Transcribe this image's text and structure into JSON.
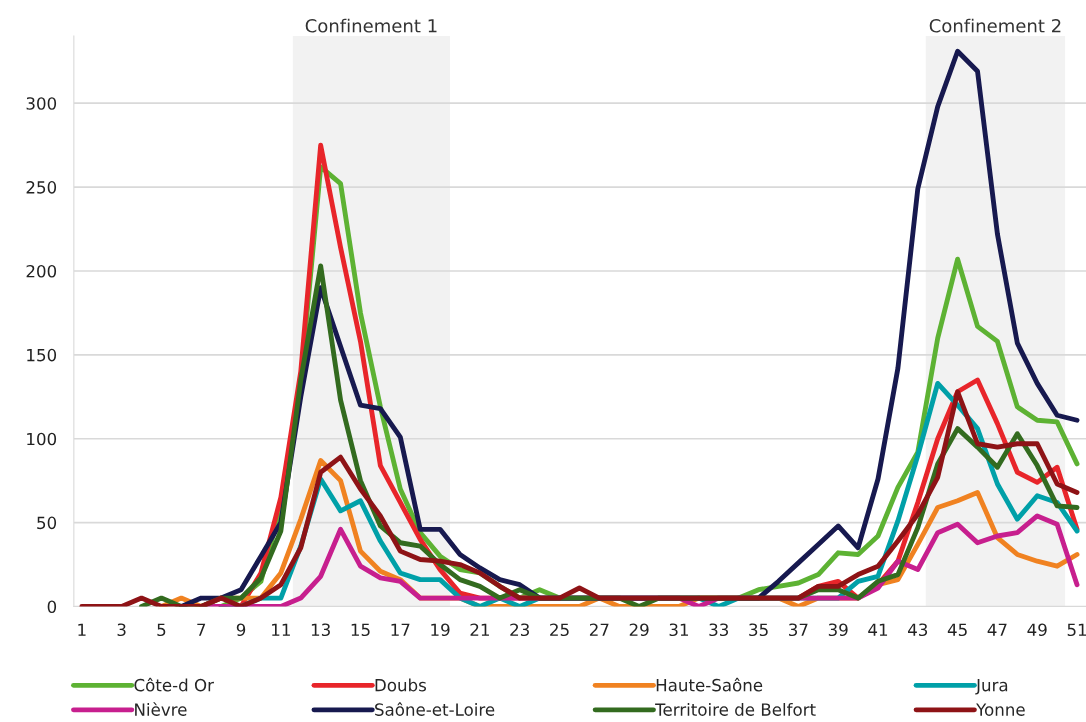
{
  "chart_data": {
    "type": "line",
    "x": [
      1,
      2,
      3,
      4,
      5,
      6,
      7,
      8,
      9,
      10,
      11,
      12,
      13,
      14,
      15,
      16,
      17,
      18,
      19,
      20,
      21,
      22,
      23,
      24,
      25,
      26,
      27,
      28,
      29,
      30,
      31,
      32,
      33,
      34,
      35,
      36,
      37,
      38,
      39,
      40,
      41,
      42,
      43,
      44,
      45,
      46,
      47,
      48,
      49,
      50,
      51
    ],
    "xlim": [
      0.6,
      51.45
    ],
    "xticks": [
      1,
      3,
      5,
      7,
      9,
      11,
      13,
      15,
      17,
      19,
      21,
      23,
      25,
      27,
      29,
      31,
      33,
      35,
      37,
      39,
      41,
      43,
      45,
      47,
      49,
      51
    ],
    "ylim": [
      0,
      340
    ],
    "yticks": [
      0,
      50,
      100,
      150,
      200,
      250,
      300
    ],
    "grid": "y",
    "legend": "bottom",
    "marker": "none",
    "line_style": "solid",
    "bands": [
      {
        "axis": "x",
        "from": 11.6,
        "to": 19.5,
        "label": "Confinement 1",
        "color": "#f2f2f2"
      },
      {
        "axis": "x",
        "from": 43.4,
        "to": 50.4,
        "label": "Confinement 2",
        "color": "#f2f2f2"
      }
    ],
    "series": [
      {
        "name": "Côte-d Or",
        "color": "#5db233",
        "values": [
          null,
          null,
          null,
          null,
          null,
          null,
          null,
          0,
          5,
          15,
          60,
          135,
          262,
          252,
          175,
          119,
          70,
          44,
          30,
          22,
          20,
          12,
          5,
          10,
          5,
          5,
          5,
          5,
          5,
          5,
          5,
          5,
          5,
          5,
          10,
          12,
          14,
          19,
          32,
          31,
          42,
          71,
          92,
          160,
          207,
          167,
          158,
          119,
          111,
          110,
          85
        ]
      },
      {
        "name": "Doubs",
        "color": "#e8252a",
        "values": [
          null,
          null,
          null,
          null,
          null,
          null,
          null,
          0,
          0,
          20,
          65,
          140,
          275,
          214,
          158,
          84,
          62,
          40,
          22,
          8,
          5,
          5,
          5,
          5,
          5,
          5,
          5,
          5,
          5,
          5,
          5,
          5,
          5,
          5,
          5,
          5,
          5,
          12,
          15,
          5,
          13,
          27,
          62,
          100,
          128,
          135,
          109,
          80,
          74,
          83,
          46
        ]
      },
      {
        "name": "Haute-Saône",
        "color": "#f08221",
        "values": [
          null,
          null,
          null,
          null,
          0,
          5,
          0,
          5,
          5,
          5,
          20,
          52,
          87,
          75,
          33,
          21,
          16,
          5,
          5,
          5,
          0,
          0,
          0,
          0,
          0,
          0,
          5,
          0,
          0,
          0,
          0,
          5,
          5,
          5,
          5,
          5,
          0,
          5,
          5,
          5,
          13,
          16,
          37,
          59,
          63,
          68,
          41,
          31,
          27,
          24,
          31
        ]
      },
      {
        "name": "Jura",
        "color": "#00a0a8",
        "values": [
          null,
          null,
          null,
          null,
          null,
          null,
          null,
          0,
          0,
          5,
          5,
          36,
          76,
          57,
          63,
          39,
          20,
          16,
          16,
          5,
          0,
          5,
          0,
          5,
          5,
          5,
          5,
          5,
          5,
          5,
          5,
          5,
          0,
          5,
          5,
          5,
          5,
          5,
          5,
          15,
          18,
          51,
          90,
          133,
          120,
          106,
          73,
          52,
          66,
          62,
          45
        ]
      },
      {
        "name": "Nièvre",
        "color": "#c71f8e",
        "values": [
          null,
          null,
          null,
          null,
          null,
          null,
          0,
          0,
          0,
          0,
          0,
          5,
          18,
          46,
          24,
          17,
          15,
          5,
          5,
          5,
          5,
          5,
          5,
          5,
          5,
          5,
          5,
          5,
          5,
          5,
          5,
          0,
          5,
          5,
          5,
          5,
          5,
          5,
          5,
          5,
          11,
          27,
          22,
          44,
          49,
          38,
          42,
          44,
          54,
          49,
          13
        ]
      },
      {
        "name": "Saône-et-Loire",
        "color": "#17194f",
        "values": [
          null,
          null,
          null,
          null,
          null,
          0,
          5,
          5,
          10,
          30,
          50,
          125,
          190,
          155,
          120,
          118,
          101,
          46,
          46,
          31,
          23,
          16,
          13,
          5,
          5,
          5,
          5,
          5,
          5,
          5,
          5,
          5,
          5,
          5,
          5,
          15,
          26,
          37,
          48,
          35,
          76,
          142,
          249,
          298,
          331,
          319,
          222,
          157,
          133,
          114,
          111
        ]
      },
      {
        "name": "Territoire de Belfort",
        "color": "#336b1f",
        "values": [
          null,
          null,
          null,
          0,
          5,
          0,
          0,
          5,
          5,
          17,
          45,
          135,
          203,
          123,
          75,
          48,
          38,
          36,
          25,
          16,
          12,
          5,
          10,
          5,
          5,
          5,
          5,
          5,
          0,
          5,
          5,
          5,
          5,
          5,
          5,
          5,
          5,
          10,
          10,
          5,
          15,
          19,
          47,
          85,
          106,
          95,
          83,
          103,
          84,
          60,
          59
        ]
      },
      {
        "name": "Yonne",
        "color": "#8e1316",
        "values": [
          0,
          0,
          0,
          5,
          0,
          0,
          0,
          5,
          0,
          5,
          13,
          35,
          80,
          89,
          70,
          54,
          33,
          28,
          27,
          25,
          20,
          12,
          5,
          5,
          5,
          11,
          5,
          5,
          5,
          5,
          5,
          5,
          5,
          5,
          5,
          5,
          5,
          12,
          12,
          19,
          24,
          39,
          55,
          77,
          128,
          97,
          95,
          97,
          97,
          73,
          68
        ]
      }
    ]
  }
}
